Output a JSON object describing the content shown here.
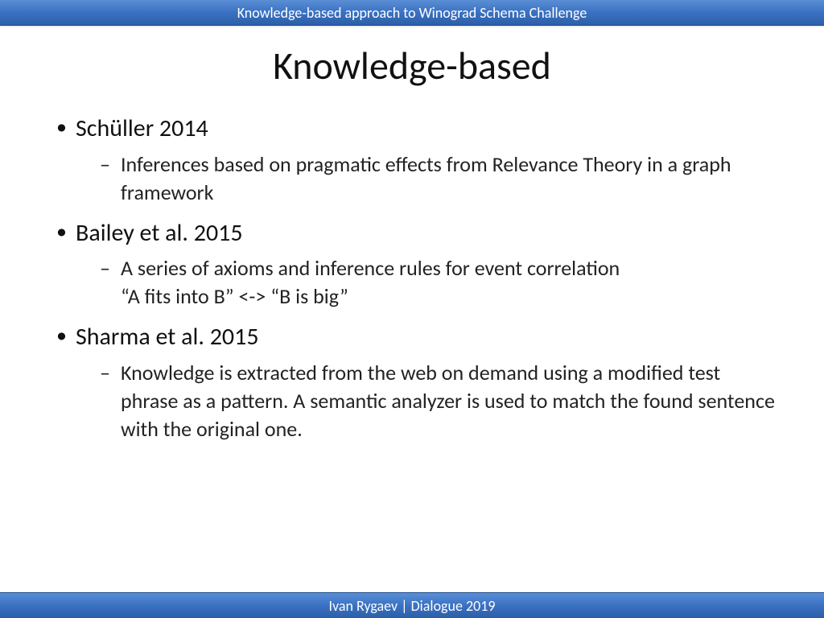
{
  "header": {
    "title": "Knowledge-based approach to Winograd  Schema Challenge"
  },
  "footer": {
    "text": "Ivan Rygaev  | Dialogue 2019"
  },
  "slide": {
    "title": "Knowledge-based",
    "title_fontsize": 48,
    "title_color": "#111111",
    "body_fontsize_l1": 30,
    "body_fontsize_l2": 26,
    "body_color": "#111111",
    "background_color": "#ffffff",
    "bar_gradient": [
      "#5a8fd6",
      "#3a71c2",
      "#2d5fa8"
    ],
    "bar_text_color": "#ffffff",
    "items": [
      {
        "heading": "Schüller 2014",
        "sub": "Inferences based on pragmatic effects from Relevance Theory in a graph framework"
      },
      {
        "heading": "Bailey et al. 2015",
        "sub": "A series of axioms and inference rules for event correlation",
        "sub_extra": "“A fits into B” <-> “B is big”"
      },
      {
        "heading": "Sharma et al. 2015",
        "sub": "Knowledge is extracted from the web on demand using a modified test phrase as a pattern. A semantic analyzer is used to match the found sentence with the original one."
      }
    ]
  }
}
